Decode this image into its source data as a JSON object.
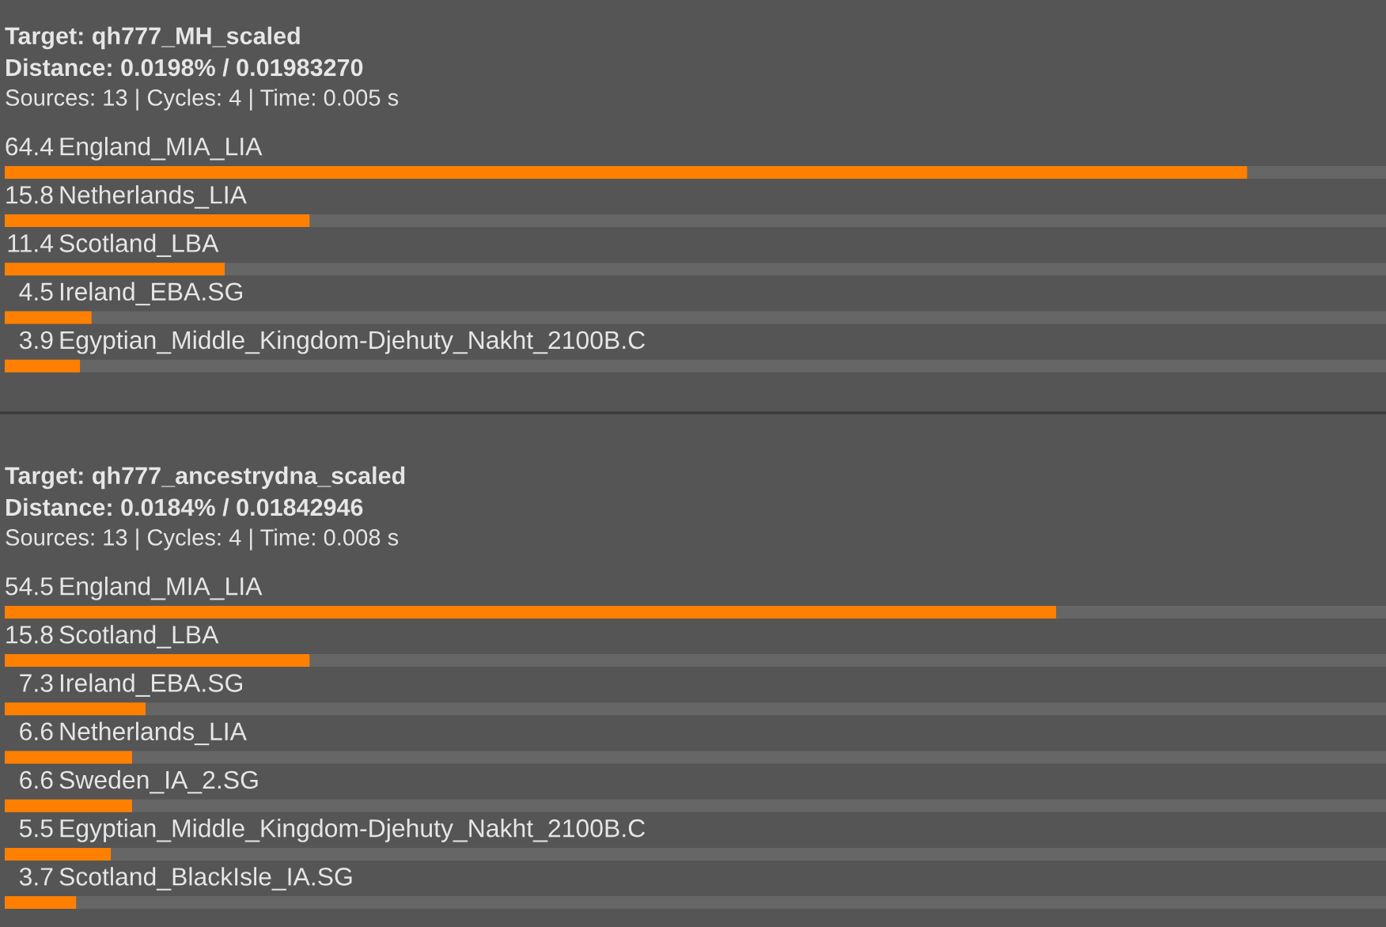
{
  "chart_data": [
    {
      "type": "bar",
      "orientation": "horizontal",
      "title": "Target: qh777_MH_scaled",
      "subtitle": "Distance: 0.0198% / 0.01983270",
      "annotations": [
        "Sources: 13 | Cycles: 4 | Time: 0.005 s"
      ],
      "categories": [
        "England_MIA_LIA",
        "Netherlands_LIA",
        "Scotland_LBA",
        "Ireland_EBA.SG",
        "Egyptian_Middle_Kingdom-Djehuty_Nakht_2100B.C"
      ],
      "series": [
        {
          "color": "#ff8000",
          "values": [
            64.4,
            15.8,
            11.4,
            4.5,
            3.9
          ]
        }
      ],
      "data_labels": true,
      "xlim": [
        0,
        71.6
      ],
      "tick_labels": false
    },
    {
      "type": "bar",
      "orientation": "horizontal",
      "title": "Target: qh777_ancestrydna_scaled",
      "subtitle": "Distance: 0.0184% / 0.01842946",
      "annotations": [
        "Sources: 13 | Cycles: 4 | Time: 0.008 s"
      ],
      "categories": [
        "England_MIA_LIA",
        "Scotland_LBA",
        "Ireland_EBA.SG",
        "Netherlands_LIA",
        "Sweden_IA_2.SG",
        "Egyptian_Middle_Kingdom-Djehuty_Nakht_2100B.C",
        "Scotland_BlackIsle_IA.SG"
      ],
      "series": [
        {
          "color": "#ff8000",
          "values": [
            54.5,
            15.8,
            7.3,
            6.6,
            6.6,
            5.5,
            3.7
          ]
        }
      ],
      "data_labels": true,
      "xlim": [
        0,
        71.6
      ],
      "tick_labels": false
    }
  ]
}
